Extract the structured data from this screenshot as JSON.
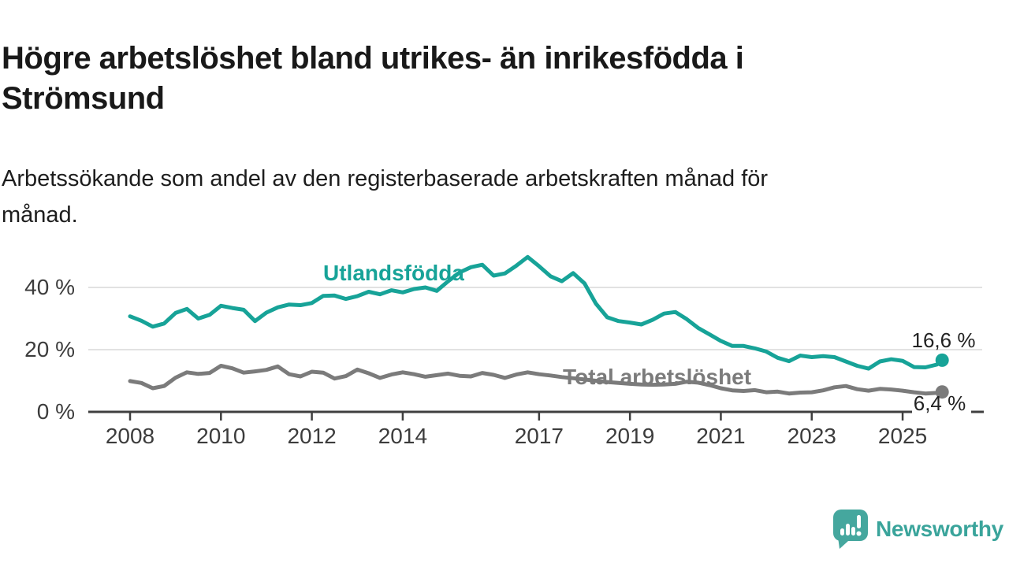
{
  "logo": {
    "text": "Newsworthy"
  },
  "colors": {
    "foreign_born_line": "#17a398",
    "total_line": "#7b7b7b",
    "gridline": "#d8d8d8",
    "axis": "#3f3f3f",
    "logo_teal": "#45a79e"
  },
  "chart_data": {
    "type": "line",
    "title": "Högre arbetslöshet bland utrikes- än inrikesfödda i Strömsund",
    "subtitle": "Arbetssökande som andel av den registerbaserade arbetskraften månad för månad.",
    "ylabel": "",
    "xlabel": "",
    "ylim": [
      0,
      52
    ],
    "grid": "horizontal",
    "legend_position": "inline-labels",
    "yticks": [
      {
        "value": 40,
        "label": "40 %"
      },
      {
        "value": 20,
        "label": "20 %"
      },
      {
        "value": 0,
        "label": "0 %"
      }
    ],
    "xticks": [
      {
        "year": 2008,
        "label": "2008"
      },
      {
        "year": 2010,
        "label": "2010"
      },
      {
        "year": 2012,
        "label": "2012"
      },
      {
        "year": 2014,
        "label": "2014"
      },
      {
        "year": 2017,
        "label": "2017"
      },
      {
        "year": 2019,
        "label": "2019"
      },
      {
        "year": 2021,
        "label": "2021"
      },
      {
        "year": 2023,
        "label": "2023"
      },
      {
        "year": 2025,
        "label": "2025"
      }
    ],
    "series": [
      {
        "name": "Utlandsfödda",
        "color": "#17a398",
        "end_label": "16,6 %",
        "end_value": 16.6,
        "points": [
          [
            2008.0,
            30.7
          ],
          [
            2008.25,
            29.3
          ],
          [
            2008.5,
            27.4
          ],
          [
            2008.75,
            28.4
          ],
          [
            2009.0,
            31.8
          ],
          [
            2009.25,
            33.1
          ],
          [
            2009.5,
            30.0
          ],
          [
            2009.75,
            31.2
          ],
          [
            2010.0,
            34.1
          ],
          [
            2010.25,
            33.4
          ],
          [
            2010.5,
            32.8
          ],
          [
            2010.75,
            29.2
          ],
          [
            2011.0,
            31.9
          ],
          [
            2011.25,
            33.6
          ],
          [
            2011.5,
            34.5
          ],
          [
            2011.75,
            34.3
          ],
          [
            2012.0,
            35.0
          ],
          [
            2012.25,
            37.3
          ],
          [
            2012.5,
            37.4
          ],
          [
            2012.75,
            36.3
          ],
          [
            2013.0,
            37.2
          ],
          [
            2013.25,
            38.6
          ],
          [
            2013.5,
            37.8
          ],
          [
            2013.75,
            39.1
          ],
          [
            2014.0,
            38.4
          ],
          [
            2014.25,
            39.5
          ],
          [
            2014.5,
            40.0
          ],
          [
            2014.75,
            38.9
          ],
          [
            2015.0,
            42.0
          ],
          [
            2015.25,
            44.8
          ],
          [
            2015.5,
            46.5
          ],
          [
            2015.75,
            47.3
          ],
          [
            2016.0,
            43.8
          ],
          [
            2016.25,
            44.5
          ],
          [
            2016.5,
            47.0
          ],
          [
            2016.75,
            49.8
          ],
          [
            2017.0,
            46.8
          ],
          [
            2017.25,
            43.6
          ],
          [
            2017.5,
            42.0
          ],
          [
            2017.75,
            44.6
          ],
          [
            2018.0,
            41.3
          ],
          [
            2018.25,
            34.8
          ],
          [
            2018.5,
            30.4
          ],
          [
            2018.75,
            29.2
          ],
          [
            2019.0,
            28.7
          ],
          [
            2019.25,
            28.1
          ],
          [
            2019.5,
            29.6
          ],
          [
            2019.75,
            31.6
          ],
          [
            2020.0,
            32.1
          ],
          [
            2020.25,
            29.8
          ],
          [
            2020.5,
            27.0
          ],
          [
            2020.75,
            24.9
          ],
          [
            2021.0,
            22.8
          ],
          [
            2021.25,
            21.2
          ],
          [
            2021.5,
            21.2
          ],
          [
            2021.75,
            20.4
          ],
          [
            2022.0,
            19.4
          ],
          [
            2022.25,
            17.4
          ],
          [
            2022.5,
            16.3
          ],
          [
            2022.75,
            18.1
          ],
          [
            2023.0,
            17.6
          ],
          [
            2023.25,
            17.9
          ],
          [
            2023.5,
            17.6
          ],
          [
            2023.75,
            16.2
          ],
          [
            2024.0,
            14.8
          ],
          [
            2024.25,
            13.9
          ],
          [
            2024.5,
            16.2
          ],
          [
            2024.75,
            16.9
          ],
          [
            2025.0,
            16.4
          ],
          [
            2025.25,
            14.4
          ],
          [
            2025.5,
            14.3
          ],
          [
            2025.75,
            15.2
          ],
          [
            2025.87,
            16.6
          ]
        ]
      },
      {
        "name": "Total arbetslöshet",
        "color": "#7b7b7b",
        "end_label": "6,4 %",
        "end_value": 6.4,
        "points": [
          [
            2008.0,
            9.9
          ],
          [
            2008.25,
            9.3
          ],
          [
            2008.5,
            7.6
          ],
          [
            2008.75,
            8.3
          ],
          [
            2009.0,
            11.0
          ],
          [
            2009.25,
            12.7
          ],
          [
            2009.5,
            12.2
          ],
          [
            2009.75,
            12.5
          ],
          [
            2010.0,
            14.8
          ],
          [
            2010.25,
            14.0
          ],
          [
            2010.5,
            12.6
          ],
          [
            2010.75,
            13.0
          ],
          [
            2011.0,
            13.5
          ],
          [
            2011.25,
            14.6
          ],
          [
            2011.5,
            12.1
          ],
          [
            2011.75,
            11.4
          ],
          [
            2012.0,
            12.9
          ],
          [
            2012.25,
            12.6
          ],
          [
            2012.5,
            10.7
          ],
          [
            2012.75,
            11.5
          ],
          [
            2013.0,
            13.6
          ],
          [
            2013.25,
            12.4
          ],
          [
            2013.5,
            10.9
          ],
          [
            2013.75,
            12.0
          ],
          [
            2014.0,
            12.7
          ],
          [
            2014.25,
            12.1
          ],
          [
            2014.5,
            11.3
          ],
          [
            2014.75,
            11.8
          ],
          [
            2015.0,
            12.3
          ],
          [
            2015.25,
            11.6
          ],
          [
            2015.5,
            11.4
          ],
          [
            2015.75,
            12.5
          ],
          [
            2016.0,
            11.9
          ],
          [
            2016.25,
            10.9
          ],
          [
            2016.5,
            12.0
          ],
          [
            2016.75,
            12.7
          ],
          [
            2017.0,
            12.1
          ],
          [
            2017.25,
            11.7
          ],
          [
            2017.5,
            11.2
          ],
          [
            2017.75,
            10.8
          ],
          [
            2018.0,
            10.4
          ],
          [
            2018.25,
            10.0
          ],
          [
            2018.5,
            9.6
          ],
          [
            2018.75,
            9.3
          ],
          [
            2019.0,
            9.0
          ],
          [
            2019.25,
            8.8
          ],
          [
            2019.5,
            8.7
          ],
          [
            2019.75,
            8.8
          ],
          [
            2020.0,
            9.0
          ],
          [
            2020.25,
            9.7
          ],
          [
            2020.5,
            9.4
          ],
          [
            2020.75,
            8.6
          ],
          [
            2021.0,
            7.6
          ],
          [
            2021.25,
            6.9
          ],
          [
            2021.5,
            6.7
          ],
          [
            2021.75,
            7.0
          ],
          [
            2022.0,
            6.3
          ],
          [
            2022.25,
            6.5
          ],
          [
            2022.5,
            5.9
          ],
          [
            2022.75,
            6.2
          ],
          [
            2023.0,
            6.3
          ],
          [
            2023.25,
            6.9
          ],
          [
            2023.5,
            7.9
          ],
          [
            2023.75,
            8.3
          ],
          [
            2024.0,
            7.3
          ],
          [
            2024.25,
            6.8
          ],
          [
            2024.5,
            7.4
          ],
          [
            2024.75,
            7.2
          ],
          [
            2025.0,
            6.8
          ],
          [
            2025.25,
            6.3
          ],
          [
            2025.5,
            5.9
          ],
          [
            2025.75,
            6.1
          ],
          [
            2025.87,
            6.4
          ]
        ]
      }
    ]
  }
}
